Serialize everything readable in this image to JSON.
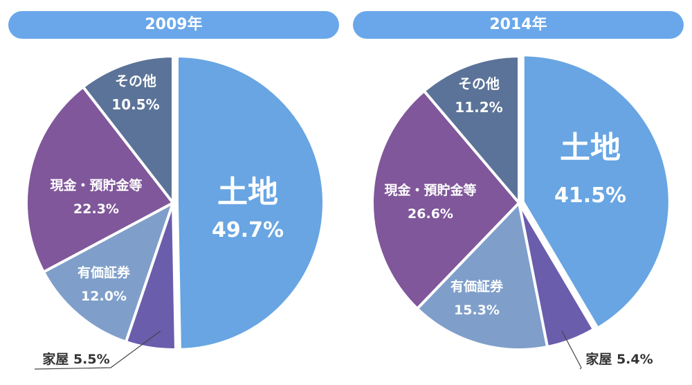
{
  "chart_data": [
    {
      "type": "pie",
      "title": "2009年",
      "slices": [
        {
          "label": "土地",
          "pct_text": "49.7%",
          "value": 49.7,
          "color": "#68a5e2"
        },
        {
          "label": "家屋",
          "pct_text": "5.5%",
          "value": 5.5,
          "color": "#6a5dac"
        },
        {
          "label": "有価証券",
          "pct_text": "12.0%",
          "value": 12.0,
          "color": "#7f9fca"
        },
        {
          "label": "現金・預貯金等",
          "pct_text": "22.3%",
          "value": 22.3,
          "color": "#80579a"
        },
        {
          "label": "その他",
          "pct_text": "10.5%",
          "value": 10.5,
          "color": "#5b7398"
        }
      ]
    },
    {
      "type": "pie",
      "title": "2014年",
      "slices": [
        {
          "label": "土地",
          "pct_text": "41.5%",
          "value": 41.5,
          "color": "#68a5e2"
        },
        {
          "label": "家屋",
          "pct_text": "5.4%",
          "value": 5.4,
          "color": "#6a5dac"
        },
        {
          "label": "有価証券",
          "pct_text": "15.3%",
          "value": 15.3,
          "color": "#7f9fca"
        },
        {
          "label": "現金・預貯金等",
          "pct_text": "26.6%",
          "value": 26.6,
          "color": "#80579a"
        },
        {
          "label": "その他",
          "pct_text": "11.2%",
          "value": 11.2,
          "color": "#5b7398"
        }
      ]
    }
  ]
}
